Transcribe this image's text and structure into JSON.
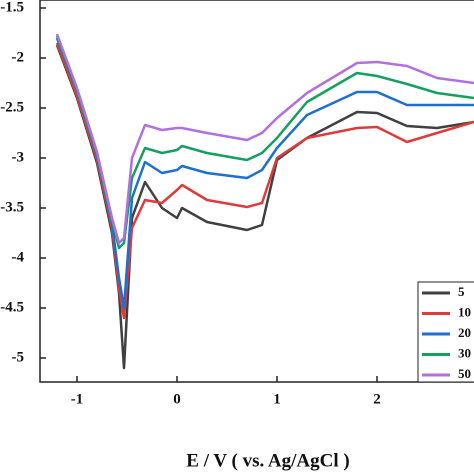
{
  "chart_data": {
    "type": "line",
    "x_label": "E / V ( vs. Ag/AgCl )",
    "x": [
      -1.2,
      -1.0,
      -0.8,
      -0.65,
      -0.58,
      -0.53,
      -0.45,
      -0.32,
      -0.15,
      0,
      0.05,
      0.3,
      0.7,
      0.85,
      1.0,
      1.3,
      1.8,
      2.0,
      2.3,
      2.6,
      2.97
    ],
    "series": [
      {
        "name": "5",
        "color": "#404040",
        "values": [
          -1.87,
          -2.4,
          -3.05,
          -3.75,
          -4.35,
          -5.1,
          -3.6,
          -3.24,
          -3.5,
          -3.6,
          -3.5,
          -3.64,
          -3.72,
          -3.67,
          -3.02,
          -2.8,
          -2.54,
          -2.55,
          -2.68,
          -2.7,
          -2.64
        ]
      },
      {
        "name": "10",
        "color": "#e03a3a",
        "values": [
          -1.85,
          -2.38,
          -3.02,
          -3.7,
          -4.3,
          -4.6,
          -3.7,
          -3.42,
          -3.45,
          -3.32,
          -3.27,
          -3.42,
          -3.49,
          -3.45,
          -3.0,
          -2.8,
          -2.7,
          -2.69,
          -2.84,
          -2.75,
          -2.64
        ]
      },
      {
        "name": "20",
        "color": "#1f6fd0",
        "values": [
          -1.8,
          -2.33,
          -2.98,
          -3.65,
          -4.2,
          -4.5,
          -3.4,
          -3.04,
          -3.15,
          -3.12,
          -3.08,
          -3.15,
          -3.2,
          -3.12,
          -2.9,
          -2.57,
          -2.34,
          -2.34,
          -2.47,
          -2.47,
          -2.47
        ]
      },
      {
        "name": "30",
        "color": "#14a060",
        "values": [
          -1.78,
          -2.32,
          -2.96,
          -3.62,
          -3.9,
          -3.85,
          -3.2,
          -2.9,
          -2.95,
          -2.92,
          -2.88,
          -2.95,
          -3.02,
          -2.95,
          -2.8,
          -2.44,
          -2.15,
          -2.18,
          -2.26,
          -2.35,
          -2.4
        ]
      },
      {
        "name": "50",
        "color": "#b070e0",
        "values": [
          -1.76,
          -2.3,
          -2.94,
          -3.6,
          -3.85,
          -3.8,
          -3.0,
          -2.67,
          -2.72,
          -2.7,
          -2.7,
          -2.75,
          -2.82,
          -2.75,
          -2.6,
          -2.35,
          -2.05,
          -2.04,
          -2.08,
          -2.2,
          -2.25
        ]
      }
    ],
    "xlim": [
      -1.37,
      2.97
    ],
    "xticks": [
      -1,
      0,
      1,
      2
    ],
    "ylim": [
      -1.42,
      -5.24
    ],
    "yticks": [
      -1.5,
      -2.0,
      -2.5,
      -3.0,
      -3.5,
      -4.0,
      -4.5,
      -5.0
    ],
    "legend": "lower right"
  }
}
